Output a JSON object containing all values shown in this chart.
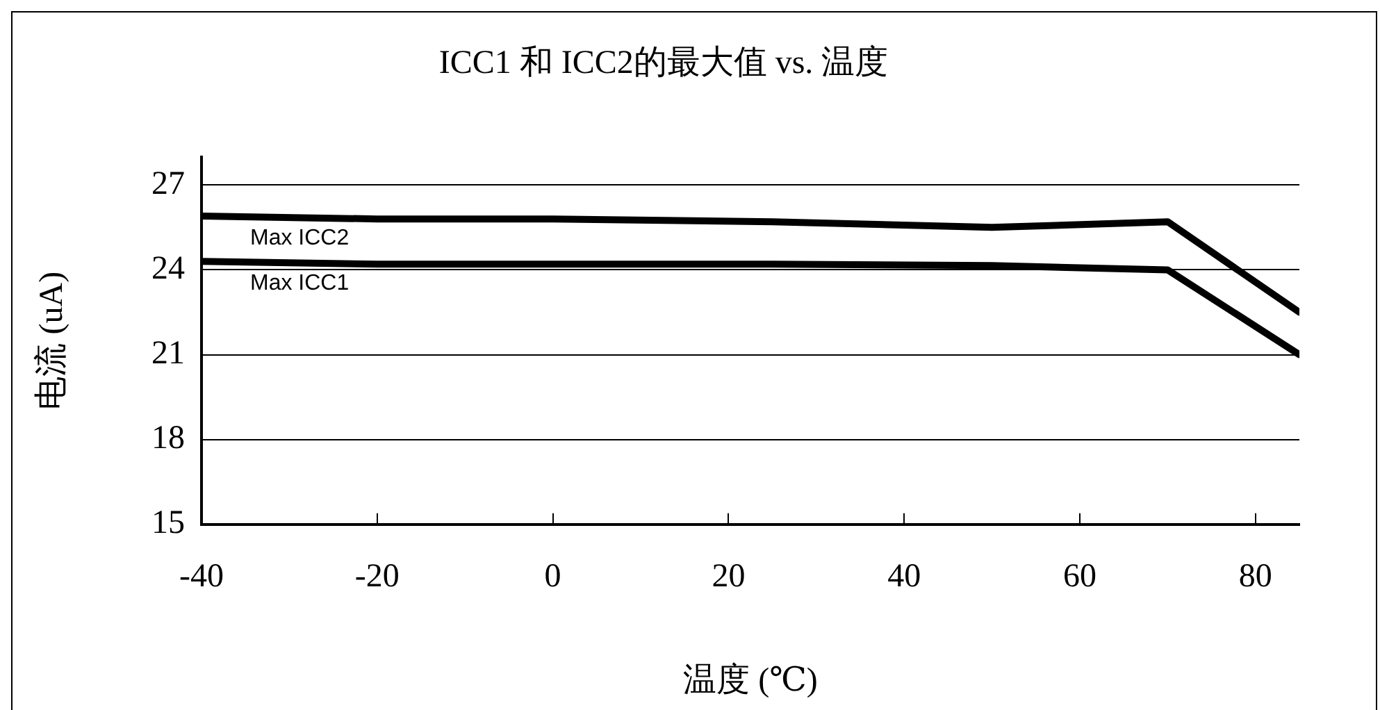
{
  "chart_data": {
    "type": "line",
    "title": "ICC1 和 ICC2的最大值 vs. 温度",
    "xlabel": "温度 (℃)",
    "ylabel": "电流 (uA)",
    "x": [
      -40,
      -20,
      0,
      25,
      50,
      70,
      85
    ],
    "series": [
      {
        "name": "Max ICC2",
        "color": "#000000",
        "values": [
          25.9,
          25.8,
          25.8,
          25.7,
          25.5,
          25.7,
          22.5
        ]
      },
      {
        "name": "Max ICC1",
        "color": "#000000",
        "values": [
          24.3,
          24.2,
          24.2,
          24.2,
          24.15,
          24.0,
          21.0
        ]
      }
    ],
    "xlim": [
      -40,
      85
    ],
    "xticks": [
      -40,
      -20,
      0,
      20,
      40,
      60,
      80
    ],
    "ylim": [
      15,
      28
    ],
    "yticks": [
      15,
      18,
      21,
      24,
      27
    ],
    "grid": "y",
    "legend": false,
    "marker": "none",
    "line_style": "solid"
  }
}
